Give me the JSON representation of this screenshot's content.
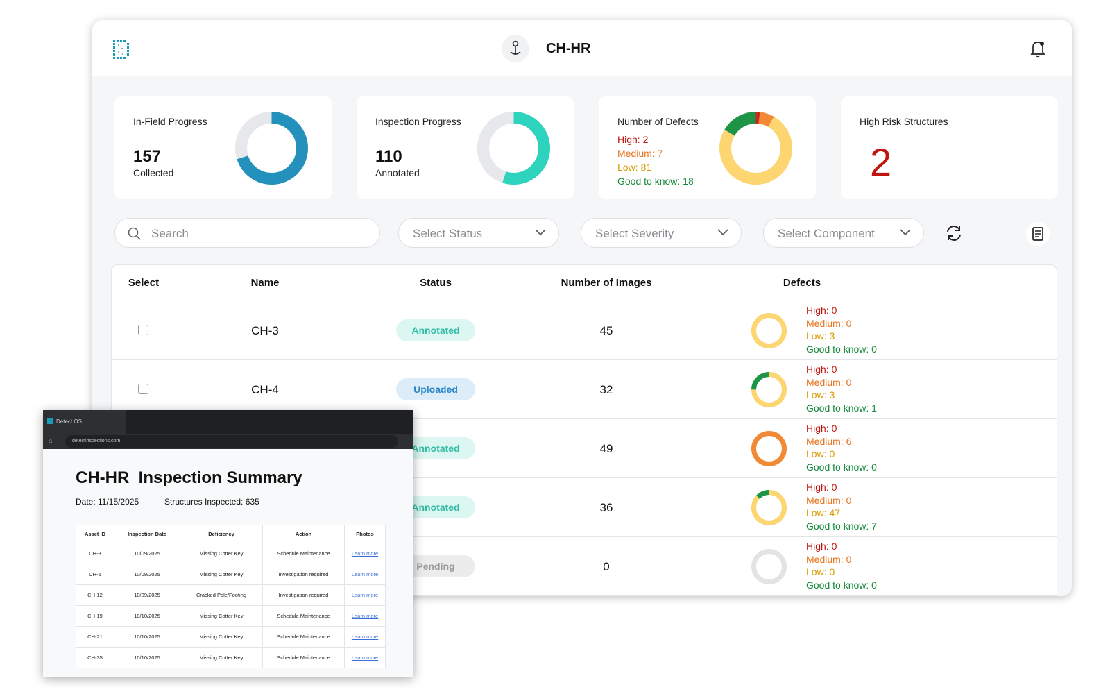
{
  "header": {
    "title": "CH-HR"
  },
  "cards": [
    {
      "label": "In-Field Progress",
      "value": 157,
      "unit": "Collected",
      "ring": [
        70,
        30
      ],
      "ring_colors": [
        "#2391bc",
        "#e6e8ec"
      ]
    },
    {
      "label": "Inspection Progress",
      "value": 110,
      "unit": "Annotated",
      "ring": [
        55,
        45
      ],
      "ring_colors": [
        "#2ed3bd",
        "#e6e8ec"
      ]
    },
    {
      "label": "Number of Defects",
      "defects": {
        "values": [
          2,
          7,
          81,
          18
        ],
        "value_labels": [
          "High: 2",
          "Medium: 7",
          "Low: 81",
          "Good to know: 18"
        ]
      }
    },
    {
      "label": "High Risk Structures",
      "value": 2
    }
  ],
  "severity_colors": [
    "#c8281e",
    "#f28a35",
    "#fdd672",
    "#1e9447"
  ],
  "severity_text_colors": [
    "#c0150f",
    "#e8731c",
    "#d99a00",
    "#14893a"
  ],
  "filters": {
    "search": "Search",
    "selects": [
      "Select Status",
      "Select Severity",
      "Select Component"
    ]
  },
  "table": {
    "columns": [
      "Select",
      "Name",
      "Status",
      "Number of Images",
      "Defects"
    ],
    "rows": [
      {
        "name": "CH-3",
        "status": "Annotated",
        "status_colors": [
          "#dcf6f1",
          "#2fbca4"
        ],
        "images": 45,
        "defects": {
          "values": [
            0,
            0,
            3,
            0
          ],
          "value_labels": [
            "High: 0",
            "Medium: 0",
            "Low: 3",
            "Good to know: 0"
          ]
        }
      },
      {
        "name": "CH-4",
        "status": "Uploaded",
        "status_colors": [
          "#dcedf9",
          "#2a86c7"
        ],
        "images": 32,
        "defects": {
          "values": [
            0,
            0,
            3,
            1
          ],
          "value_labels": [
            "High: 0",
            "Medium: 0",
            "Low: 3",
            "Good to know: 1"
          ]
        }
      },
      {
        "name": null,
        "status": "Annotated",
        "status_colors": [
          "#dcf6f1",
          "#2fbca4"
        ],
        "images": 49,
        "defects": {
          "values": [
            0,
            6,
            0,
            0
          ],
          "value_labels": [
            "High: 0",
            "Medium: 6",
            "Low: 0",
            "Good to know: 0"
          ]
        }
      },
      {
        "name": null,
        "status": "Annotated",
        "status_colors": [
          "#dcf6f1",
          "#2fbca4"
        ],
        "images": 36,
        "defects": {
          "values": [
            0,
            0,
            47,
            7
          ],
          "value_labels": [
            "High: 0",
            "Medium: 0",
            "Low: 47",
            "Good to know: 7"
          ]
        }
      },
      {
        "name": null,
        "status": "Pending",
        "status_colors": [
          "#ececec",
          "#9a9a9a"
        ],
        "images": 0,
        "defects": {
          "values": [
            0,
            0,
            0,
            0
          ],
          "value_labels": [
            "High: 0",
            "Medium: 0",
            "Low: 0",
            "Good to know: 0"
          ]
        }
      }
    ]
  },
  "report": {
    "tab": "Detect OS",
    "url": "detectinspections.com",
    "title": "CH-HR  Inspection Summary",
    "date": "Date: 11/15/2025",
    "structures": "Structures Inspected: 635",
    "columns": [
      "Asset ID",
      "Inspection Date",
      "Deficiency",
      "Action",
      "Photos"
    ],
    "rows": [
      [
        "CH-3",
        "10/09/2025",
        "Missing Cotter Key",
        "Schedule Maintenance",
        "Learn more"
      ],
      [
        "CH-5",
        "10/09/2025",
        "Missing Cotter Key",
        "Investigation required",
        "Learn more"
      ],
      [
        "CH-12",
        "10/09/2025",
        "Cracked Pole/Footing",
        "Investigation required",
        "Learn more"
      ],
      [
        "CH-19",
        "10/10/2025",
        "Missing Cotter Key",
        "Schedule Maintenance",
        "Learn more"
      ],
      [
        "CH-21",
        "10/10/2025",
        "Missing Cotter Key",
        "Schedule Maintenance",
        "Learn more"
      ],
      [
        "CH-35",
        "10/10/2025",
        "Missing Cotter Key",
        "Schedule Maintenance",
        "Learn more"
      ]
    ]
  }
}
